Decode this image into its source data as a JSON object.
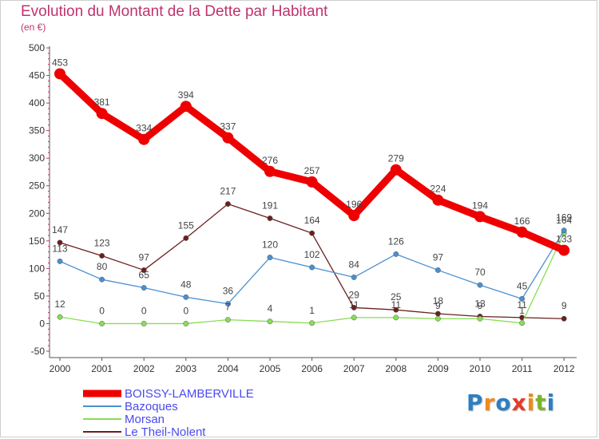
{
  "chart_data": {
    "type": "line",
    "title": "Evolution du Montant de la Dette par Habitant",
    "subtitle": "(en €)",
    "ylim": [
      -50,
      500
    ],
    "yticks": [
      -50,
      0,
      50,
      100,
      150,
      200,
      250,
      300,
      350,
      400,
      450,
      500
    ],
    "x": [
      "2000",
      "2001",
      "2002",
      "2003",
      "2004",
      "2005",
      "2006",
      "2007",
      "2008",
      "2009",
      "2010",
      "2011",
      "2012"
    ],
    "grid": false,
    "legend_position": "bottom-left",
    "series": [
      {
        "name": "BOISSY-LAMBERVILLE",
        "color": "#ee0000",
        "values": [
          453,
          381,
          334,
          394,
          337,
          276,
          257,
          196,
          279,
          224,
          194,
          166,
          133
        ]
      },
      {
        "name": "Bazoques",
        "color": "#4a90d0",
        "values": [
          113,
          80,
          65,
          48,
          36,
          120,
          102,
          84,
          126,
          97,
          70,
          45,
          169
        ]
      },
      {
        "name": "Morsan",
        "color": "#88dd55",
        "values": [
          12,
          0,
          0,
          0,
          7,
          4,
          1,
          11,
          11,
          9,
          9,
          1,
          164
        ]
      },
      {
        "name": "Le Theil-Nolent",
        "color": "#6b1f1f",
        "values": [
          147,
          123,
          97,
          155,
          217,
          191,
          164,
          29,
          25,
          18,
          13,
          11,
          9
        ]
      }
    ]
  },
  "logo": {
    "letters": [
      "P",
      "r",
      "o",
      "x",
      "i",
      "t",
      "i"
    ],
    "colors": [
      "#2f7ec2",
      "#f08a1c",
      "#2f7ec2",
      "#e43b2c",
      "#f08a1c",
      "#7ab52c",
      "#2f7ec2"
    ]
  }
}
